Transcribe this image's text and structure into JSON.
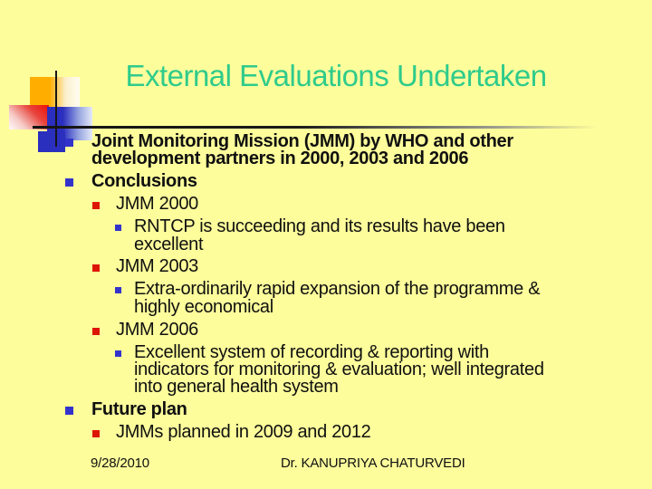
{
  "slide": {
    "background_color": "#FDFD9C",
    "title": {
      "text": "External Evaluations Undertaken",
      "color": "#2FCB8B"
    },
    "bullets": [
      {
        "level": 1,
        "bold": true,
        "bullet_color": "#3333CC",
        "text": "Joint Monitoring Mission (JMM) by WHO and other\ndevelopment partners in 2000, 2003 and 2006"
      },
      {
        "level": 1,
        "bold": true,
        "bullet_color": "#3333CC",
        "text": "Conclusions"
      },
      {
        "level": 2,
        "bold": false,
        "bullet_color": "#DD1505",
        "text": "JMM 2000"
      },
      {
        "level": 3,
        "bold": false,
        "bullet_color": "#3333CC",
        "text": "RNTCP is succeeding and its results have been\nexcellent"
      },
      {
        "level": 2,
        "bold": false,
        "bullet_color": "#DD1505",
        "text": "JMM 2003"
      },
      {
        "level": 3,
        "bold": false,
        "bullet_color": "#3333CC",
        "text": "Extra-ordinarily rapid expansion of the programme &\nhighly economical"
      },
      {
        "level": 2,
        "bold": false,
        "bullet_color": "#DD1505",
        "text": "JMM 2006"
      },
      {
        "level": 3,
        "bold": false,
        "bullet_color": "#3333CC",
        "text": "Excellent system of recording & reporting with\nindicators for monitoring & evaluation; well integrated\ninto general health system"
      },
      {
        "level": 1,
        "bold": true,
        "bullet_color": "#3333CC",
        "text": "Future plan"
      },
      {
        "level": 2,
        "bold": false,
        "bullet_color": "#DD1505",
        "text": "JMMs planned in 2009 and 2012"
      }
    ],
    "footer": {
      "date": "9/28/2010",
      "author": "Dr. KANUPRIYA CHATURVEDI"
    },
    "decoration": {
      "orange": "#FFAE00",
      "red": "#EE1005",
      "blue": "#2B2FBE",
      "line": "#161616"
    }
  }
}
